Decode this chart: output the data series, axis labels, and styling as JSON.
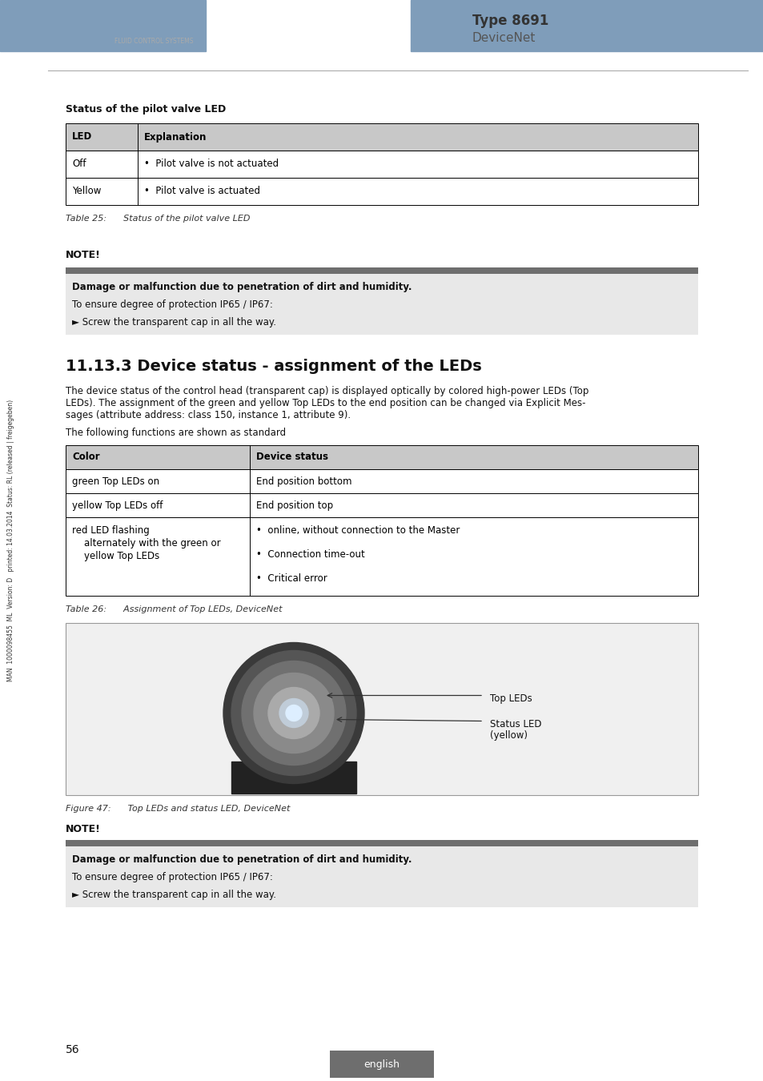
{
  "page_bg": "#ffffff",
  "header_bar_color": "#7f9dba",
  "type_text": "Type 8691",
  "devicenet_text": "DeviceNet",
  "section1_title": "Status of the pilot valve LED",
  "table1_header": [
    "LED",
    "Explanation"
  ],
  "table1_rows": [
    [
      "Off",
      "•  Pilot valve is not actuated"
    ],
    [
      "Yellow",
      "•  Pilot valve is actuated"
    ]
  ],
  "table1_caption": "Table 25:      Status of the pilot valve LED",
  "note1_label": "NOTE!",
  "note1_bar_color": "#6e6e6e",
  "note1_bg_color": "#e8e8e8",
  "note1_bold": "Damage or malfunction due to penetration of dirt and humidity.",
  "note1_line2": "To ensure degree of protection IP65 / IP67:",
  "note1_line3": "► Screw the transparent cap in all the way.",
  "section2_title": "11.13.3 Device status - assignment of the LEDs",
  "section2_para1a": "The device status of the control head (transparent cap) is displayed optically by colored high-power LEDs (Top",
  "section2_para1b": "LEDs). The assignment of the green and yellow Top LEDs to the end position can be changed via Explicit Mes-",
  "section2_para1c": "sages (attribute address: class 150, instance 1, attribute 9).",
  "section2_para2": "The following functions are shown as standard",
  "table2_header": [
    "Color",
    "Device status"
  ],
  "table2_row0_col0": "green Top LEDs on",
  "table2_row0_col1": "End position bottom",
  "table2_row1_col0": "yellow Top LEDs off",
  "table2_row1_col1": "End position top",
  "table2_row2_col0_line0": "red LED flashing",
  "table2_row2_col0_line1": "    alternately with the green or",
  "table2_row2_col0_line2": "    yellow Top LEDs",
  "table2_row2_col1_line0": "•  online, without connection to the Master",
  "table2_row2_col1_line1": "•  Connection time-out",
  "table2_row2_col1_line2": "•  Critical error",
  "table2_caption": "Table 26:      Assignment of Top LEDs, DeviceNet",
  "fig_caption": "Figure 47:      Top LEDs and status LED, DeviceNet",
  "fig_label1": "Top LEDs",
  "fig_label2_line1": "Status LED",
  "fig_label2_line2": "(yellow)",
  "note2_label": "NOTE!",
  "note2_bar_color": "#6e6e6e",
  "note2_bg_color": "#e8e8e8",
  "note2_bold": "Damage or malfunction due to penetration of dirt and humidity.",
  "note2_line2": "To ensure degree of protection IP65 / IP67:",
  "note2_line3": "► Screw the transparent cap in all the way.",
  "page_num": "56",
  "footer_text": "english",
  "footer_bg": "#6e6e6e",
  "sidebar_text": "MAN  1000098455  ML  Version: D   printed: 14.03.2014  Status: RL (released | freigegeben)",
  "table_header_bg": "#c8c8c8",
  "table_border_color": "#000000"
}
